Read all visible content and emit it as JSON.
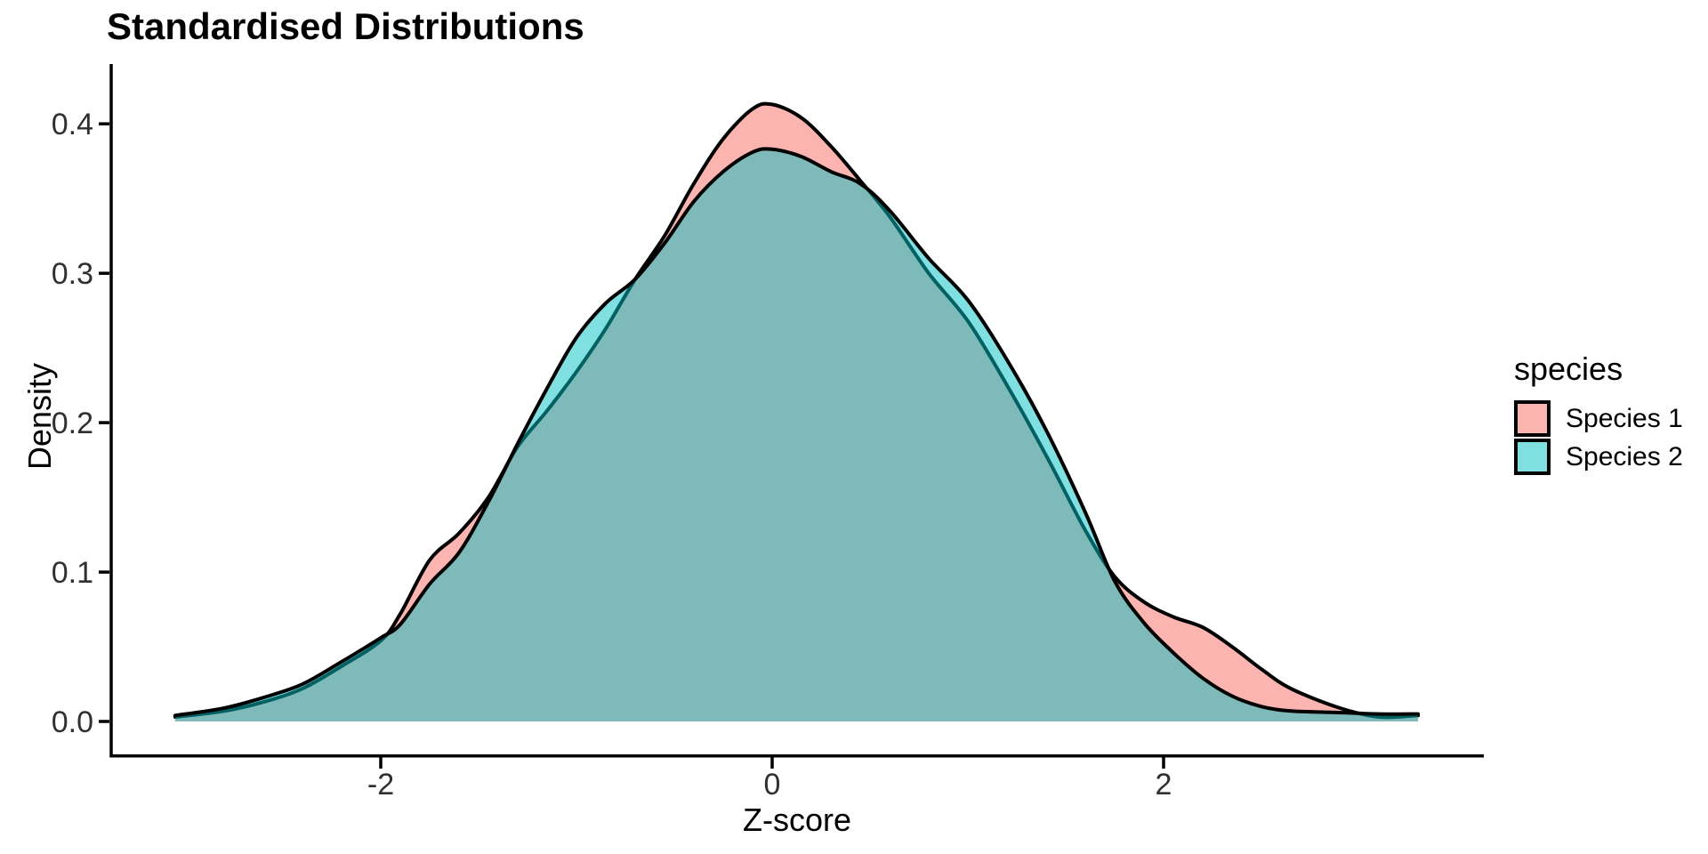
{
  "title": "Standardised Distributions",
  "axes": {
    "x_title": "Z-score",
    "y_title": "Density",
    "x_tick_labels": [
      "-2",
      "0",
      "2"
    ],
    "y_tick_labels": [
      "0.0",
      "0.1",
      "0.2",
      "0.3",
      "0.4"
    ]
  },
  "legend": {
    "title": "species",
    "entries": [
      {
        "label": "Species 1",
        "color_hex": "#F8766D",
        "fill": "rgba(248,118,109,0.55)",
        "border": "#000000"
      },
      {
        "label": "Species 2",
        "color_hex": "#00BFC4",
        "fill": "rgba(0,191,196,0.50)",
        "border": "#000000"
      }
    ]
  },
  "chart_data": {
    "type": "area",
    "subtype": "overlaid-density-curves",
    "title": "Standardised Distributions",
    "xlabel": "Z-score",
    "ylabel": "Density",
    "legend_title": "species",
    "legend_position": "right",
    "grid": false,
    "background": "#ffffff",
    "axis_color": "#000000",
    "curve_stroke": "#000000",
    "xlim": [
      -3.377,
      3.636
    ],
    "ylim": [
      -0.022,
      0.44
    ],
    "x_ticks": [
      -2,
      0,
      2
    ],
    "y_ticks": [
      0,
      0.1,
      0.2,
      0.3,
      0.4
    ],
    "x": [
      -3.05,
      -2.8,
      -2.6,
      -2.4,
      -2.2,
      -2.0,
      -1.9,
      -1.75,
      -1.6,
      -1.45,
      -1.3,
      -1.15,
      -1.0,
      -0.85,
      -0.7,
      -0.55,
      -0.4,
      -0.25,
      -0.1,
      0.0,
      0.15,
      0.3,
      0.45,
      0.6,
      0.8,
      1.0,
      1.2,
      1.4,
      1.6,
      1.75,
      1.9,
      2.05,
      2.2,
      2.35,
      2.5,
      2.65,
      2.9,
      3.1,
      3.3
    ],
    "series": [
      {
        "name": "Species 1",
        "color": "#F8766D",
        "fill": "rgba(248,118,109,0.55)",
        "stroke": "#000000",
        "peak": 0.413,
        "values": [
          0.003,
          0.007,
          0.013,
          0.022,
          0.037,
          0.054,
          0.072,
          0.108,
          0.126,
          0.15,
          0.184,
          0.208,
          0.234,
          0.263,
          0.296,
          0.325,
          0.36,
          0.39,
          0.41,
          0.413,
          0.404,
          0.385,
          0.362,
          0.338,
          0.3,
          0.268,
          0.225,
          0.178,
          0.128,
          0.097,
          0.08,
          0.07,
          0.063,
          0.05,
          0.035,
          0.022,
          0.009,
          0.003,
          0.004
        ]
      },
      {
        "name": "Species 2",
        "color": "#00BFC4",
        "fill": "rgba(0,191,196,0.50)",
        "stroke": "#000000",
        "peak": 0.383,
        "values": [
          0.004,
          0.009,
          0.016,
          0.025,
          0.04,
          0.056,
          0.065,
          0.092,
          0.113,
          0.147,
          0.186,
          0.223,
          0.257,
          0.28,
          0.296,
          0.32,
          0.348,
          0.368,
          0.381,
          0.383,
          0.378,
          0.368,
          0.36,
          0.342,
          0.31,
          0.282,
          0.242,
          0.195,
          0.14,
          0.094,
          0.066,
          0.046,
          0.029,
          0.017,
          0.01,
          0.007,
          0.006,
          0.005,
          0.005
        ]
      }
    ]
  }
}
